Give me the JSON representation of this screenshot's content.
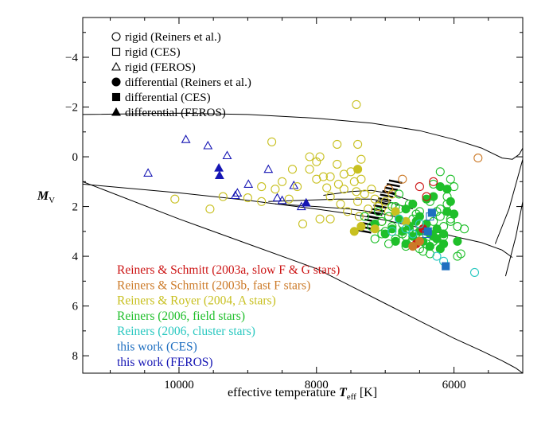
{
  "chart_data": {
    "type": "scatter",
    "title": "",
    "xlabel": {
      "prefix": "effective temperature ",
      "symbol": "T",
      "sub": "eff",
      "suffix": " [K]"
    },
    "ylabel": {
      "symbol": "M",
      "sub": "V"
    },
    "xlim": [
      11400,
      5000
    ],
    "ylim": [
      8.7,
      -5.6
    ],
    "x_ticks": [
      10000,
      8000,
      6000
    ],
    "x_tick_labels": [
      "10000",
      "8000",
      "6000"
    ],
    "y_ticks": [
      -4,
      -2,
      0,
      2,
      4,
      6,
      8
    ],
    "y_tick_labels": [
      "−4",
      "−2",
      "0",
      "2",
      "4",
      "6",
      "8"
    ],
    "colors": {
      "rs2003a": "#cc1414",
      "rs2003b": "#cc7a28",
      "rr2004": "#c8c020",
      "r2006field": "#1fbf2a",
      "r2006cluster": "#2ac8c0",
      "ces": "#1f6fc0",
      "feros": "#1616b4"
    },
    "marker_legend": [
      {
        "shape": "circle",
        "filled": false,
        "label": "rigid (Reiners et al.)"
      },
      {
        "shape": "square",
        "filled": false,
        "label": "rigid (CES)"
      },
      {
        "shape": "triangle",
        "filled": false,
        "label": "rigid (FEROS)"
      },
      {
        "shape": "circle",
        "filled": true,
        "label": "differential (Reiners et al.)"
      },
      {
        "shape": "square",
        "filled": true,
        "label": "differential (CES)"
      },
      {
        "shape": "triangle",
        "filled": true,
        "label": "differential (FEROS)"
      }
    ],
    "source_legend": [
      {
        "key": "rs2003a",
        "label": "Reiners & Schmitt (2003a, slow F & G stars)"
      },
      {
        "key": "rs2003b",
        "label": "Reiners & Schmitt (2003b, fast F stars)"
      },
      {
        "key": "rr2004",
        "label": "Reiners & Royer (2004, A stars)"
      },
      {
        "key": "r2006field",
        "label": "Reiners (2006, field stars)"
      },
      {
        "key": "r2006cluster",
        "label": "Reiners (2006, cluster stars)"
      },
      {
        "key": "ces",
        "label": "this work (CES)"
      },
      {
        "key": "feros",
        "label": "this work (FEROS)"
      }
    ],
    "curves": [
      {
        "name": "upper-isochrone",
        "x": [
          11400,
          10000,
          9000,
          8000,
          7200,
          6500,
          6000,
          5600,
          5300,
          5150,
          5050,
          4950
        ],
        "y": [
          -1.7,
          -1.75,
          -1.7,
          -1.55,
          -1.35,
          -1.05,
          -0.7,
          -0.35,
          0.05,
          0.1,
          -0.1,
          -0.6
        ]
      },
      {
        "name": "zams-upper",
        "x": [
          11400,
          10000,
          9000,
          8000,
          7500,
          7000,
          6500,
          6000,
          5600,
          5300,
          5150
        ],
        "y": [
          1.1,
          1.45,
          1.75,
          2.1,
          2.3,
          2.55,
          2.85,
          3.2,
          3.45,
          3.75,
          4.05
        ]
      },
      {
        "name": "main-sequence",
        "x": [
          11400,
          10000,
          9000,
          8000,
          7500,
          7000,
          6500,
          6000,
          5600,
          5300,
          5100,
          5000
        ],
        "y": [
          1.0,
          2.5,
          3.5,
          4.5,
          5.2,
          5.9,
          6.6,
          7.3,
          7.8,
          8.2,
          8.5,
          8.7
        ]
      },
      {
        "name": "giant-branch-1",
        "x": [
          5400,
          5200,
          5050,
          4950
        ],
        "y": [
          3.5,
          2.1,
          0.6,
          -0.4
        ]
      },
      {
        "name": "giant-branch-2",
        "x": [
          5250,
          5100,
          5000
        ],
        "y": [
          4.8,
          3.2,
          1.8
        ]
      },
      {
        "name": "evolution-track-1",
        "x": [
          8700,
          8200,
          7700,
          7200,
          6900,
          6600
        ],
        "y": [
          1.8,
          1.75,
          1.7,
          1.7,
          1.85,
          2.1
        ]
      },
      {
        "name": "evolution-track-2",
        "x": [
          8600,
          8000,
          7500,
          7100,
          6800
        ],
        "y": [
          1.9,
          2.0,
          2.1,
          2.25,
          2.45
        ]
      },
      {
        "name": "evolution-track-3",
        "x": [
          7900,
          7500,
          7200,
          6900,
          6600
        ],
        "y": [
          1.55,
          1.4,
          1.35,
          1.5,
          1.8
        ]
      }
    ],
    "series": [
      {
        "name": "feros-rigid",
        "source": "feros",
        "marker": "triangle",
        "filled": false,
        "x": [
          10450,
          9900,
          9580,
          9300,
          8990,
          8700,
          8570,
          8500,
          8330,
          8220,
          9180,
          9150
        ],
        "y": [
          0.65,
          -0.7,
          -0.45,
          -0.05,
          1.1,
          0.5,
          1.65,
          1.75,
          1.15,
          2.0,
          1.55,
          1.45
        ]
      },
      {
        "name": "feros-diff",
        "source": "feros",
        "marker": "triangle",
        "filled": true,
        "x": [
          9420,
          9410,
          8150
        ],
        "y": [
          0.45,
          0.75,
          1.85
        ]
      },
      {
        "name": "rr2004-rigid",
        "source": "rr2004",
        "marker": "circle",
        "filled": false,
        "x": [
          10060,
          9550,
          9360,
          9000,
          8800,
          8600,
          8650,
          8350,
          8280,
          8100,
          8000,
          7950,
          7900,
          7850,
          7800,
          7800,
          7700,
          7680,
          7650,
          7600,
          7550,
          7500,
          7450,
          7420,
          7400,
          7380,
          7350,
          7300,
          7250,
          7200,
          7150,
          7100,
          7050,
          7000,
          6950,
          6900,
          7400,
          7350,
          7420,
          7600,
          7700,
          8000,
          8100,
          8200,
          8400,
          8500,
          8800,
          7950,
          7800
        ],
        "y": [
          1.7,
          2.1,
          1.6,
          1.65,
          1.8,
          1.3,
          -0.6,
          0.5,
          1.2,
          0.5,
          0.2,
          0.0,
          0.8,
          1.25,
          1.6,
          2.5,
          0.3,
          1.1,
          1.9,
          1.3,
          2.2,
          0.6,
          1.0,
          1.4,
          1.8,
          2.4,
          0.9,
          1.5,
          2.1,
          1.3,
          1.7,
          2.0,
          2.6,
          1.8,
          2.2,
          1.5,
          -0.5,
          0.1,
          -2.1,
          0.7,
          -0.5,
          0.9,
          0.0,
          2.7,
          1.7,
          1.0,
          1.2,
          2.5,
          0.8
        ]
      },
      {
        "name": "r2006-field-rigid",
        "source": "r2006field",
        "marker": "circle",
        "filled": false,
        "x": [
          7300,
          7200,
          7100,
          7050,
          7000,
          6950,
          6900,
          6850,
          6800,
          6750,
          6700,
          6650,
          6600,
          6550,
          6500,
          6450,
          6400,
          6350,
          6300,
          6250,
          6200,
          6150,
          6100,
          6050,
          6000,
          5950,
          5850,
          6700,
          6600,
          6500,
          6400,
          6300,
          6200,
          6100,
          6050,
          7150,
          7050,
          6950,
          6850,
          6750,
          6650,
          6550,
          6450,
          6350,
          6250,
          6150,
          6050,
          5950,
          5900,
          6900,
          6800,
          6300,
          6200
        ],
        "y": [
          2.4,
          2.8,
          2.2,
          2.6,
          3.0,
          2.4,
          2.8,
          3.3,
          2.1,
          2.7,
          3.2,
          1.9,
          2.5,
          3.1,
          2.2,
          2.9,
          3.5,
          1.8,
          2.6,
          3.0,
          2.1,
          2.8,
          1.6,
          2.5,
          1.2,
          2.8,
          2.9,
          3.6,
          3.3,
          3.7,
          3.0,
          3.4,
          2.4,
          1.9,
          0.9,
          3.3,
          3.1,
          3.5,
          2.0,
          3.1,
          2.9,
          2.3,
          3.8,
          3.9,
          2.2,
          3.2,
          2.6,
          4.0,
          3.9,
          2.0,
          1.5,
          1.1,
          0.6
        ]
      },
      {
        "name": "r2006-field-diff",
        "source": "r2006field",
        "marker": "circle",
        "filled": true,
        "x": [
          7150,
          7000,
          6900,
          6850,
          6800,
          6750,
          6700,
          6650,
          6600,
          6550,
          6500,
          6450,
          6400,
          6350,
          6300,
          6250,
          6200,
          6150,
          6100,
          6050,
          6000,
          5950,
          6700,
          6600,
          6500,
          6400,
          6300,
          6200,
          6100,
          6350,
          6250,
          6150
        ],
        "y": [
          2.7,
          3.1,
          2.9,
          3.4,
          2.5,
          3.0,
          3.5,
          2.8,
          3.2,
          2.6,
          3.0,
          3.4,
          2.7,
          3.6,
          3.2,
          2.9,
          3.7,
          3.1,
          2.2,
          1.8,
          2.3,
          3.4,
          2.1,
          1.9,
          2.4,
          1.7,
          1.6,
          1.2,
          1.3,
          3.1,
          3.3,
          3.5
        ]
      },
      {
        "name": "rr2004-diff",
        "source": "rr2004",
        "marker": "circle",
        "filled": true,
        "x": [
          7400,
          7150,
          6850,
          6700,
          7450,
          7350
        ],
        "y": [
          0.5,
          2.9,
          2.2,
          2.6,
          3.0,
          2.8
        ]
      },
      {
        "name": "rs2003a-rigid",
        "source": "rs2003a",
        "marker": "circle",
        "filled": false,
        "x": [
          6500,
          6400,
          6300
        ],
        "y": [
          1.2,
          1.6,
          1.0
        ]
      },
      {
        "name": "rs2003a-diff",
        "source": "rs2003a",
        "marker": "circle",
        "filled": true,
        "x": [
          6550,
          6450
        ],
        "y": [
          3.5,
          2.9
        ]
      },
      {
        "name": "rs2003b-rigid",
        "source": "rs2003b",
        "marker": "circle",
        "filled": false,
        "x": [
          5650,
          6950,
          6750
        ],
        "y": [
          0.05,
          1.3,
          0.9
        ]
      },
      {
        "name": "rs2003b-diff",
        "source": "rs2003b",
        "marker": "circle",
        "filled": true,
        "x": [
          6600,
          6500
        ],
        "y": [
          3.6,
          3.4
        ]
      },
      {
        "name": "cluster-rigid",
        "source": "r2006cluster",
        "marker": "circle",
        "filled": false,
        "x": [
          6900,
          6800,
          6700,
          6600,
          6500,
          5700,
          6250,
          6150
        ],
        "y": [
          3.0,
          2.5,
          2.9,
          3.1,
          2.7,
          4.65,
          4.0,
          4.2
        ]
      },
      {
        "name": "ces-rigid",
        "source": "ces",
        "marker": "square",
        "filled": false,
        "x": [
          6400,
          6350
        ],
        "y": [
          3.1,
          2.4
        ]
      },
      {
        "name": "ces-diff",
        "source": "ces",
        "marker": "square",
        "filled": true,
        "x": [
          6380,
          6320,
          6120
        ],
        "y": [
          3.0,
          2.25,
          4.4
        ]
      }
    ],
    "hatched_band": {
      "from": [
        7300,
        3.0
      ],
      "to": [
        6850,
        1.0
      ],
      "half_width": 95,
      "stripes": 14
    }
  }
}
